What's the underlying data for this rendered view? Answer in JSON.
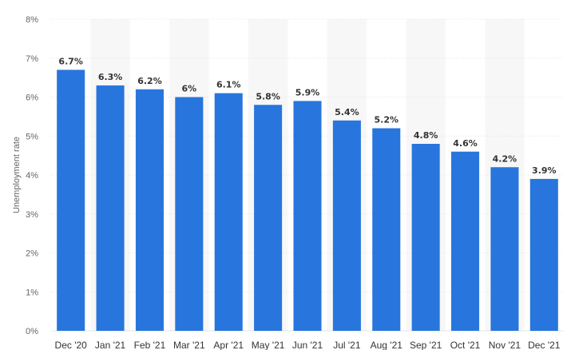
{
  "chart_data": {
    "type": "bar",
    "title": "",
    "xlabel": "",
    "ylabel": "Unemployment rate",
    "ylim": [
      0,
      8
    ],
    "y_ticks": [
      "0%",
      "1%",
      "2%",
      "3%",
      "4%",
      "5%",
      "6%",
      "7%",
      "8%"
    ],
    "y_tick_values": [
      0,
      1,
      2,
      3,
      4,
      5,
      6,
      7,
      8
    ],
    "categories": [
      "Dec '20",
      "Jan '21",
      "Feb '21",
      "Mar '21",
      "Apr '21",
      "May '21",
      "Jun '21",
      "Jul '21",
      "Aug '21",
      "Sep '21",
      "Oct '21",
      "Nov '21",
      "Dec '21"
    ],
    "values": [
      6.7,
      6.3,
      6.2,
      6.0,
      6.1,
      5.8,
      5.9,
      5.4,
      5.2,
      4.8,
      4.6,
      4.2,
      3.9
    ],
    "data_labels": [
      "6.7%",
      "6.3%",
      "6.2%",
      "6%",
      "6.1%",
      "5.8%",
      "5.9%",
      "5.4%",
      "5.2%",
      "4.8%",
      "4.6%",
      "4.2%",
      "3.9%"
    ],
    "grid": true,
    "legend": "none",
    "colors": {
      "bar": "#2876dd",
      "band": "#f7f7f7",
      "grid": "#e6e6e6"
    }
  }
}
